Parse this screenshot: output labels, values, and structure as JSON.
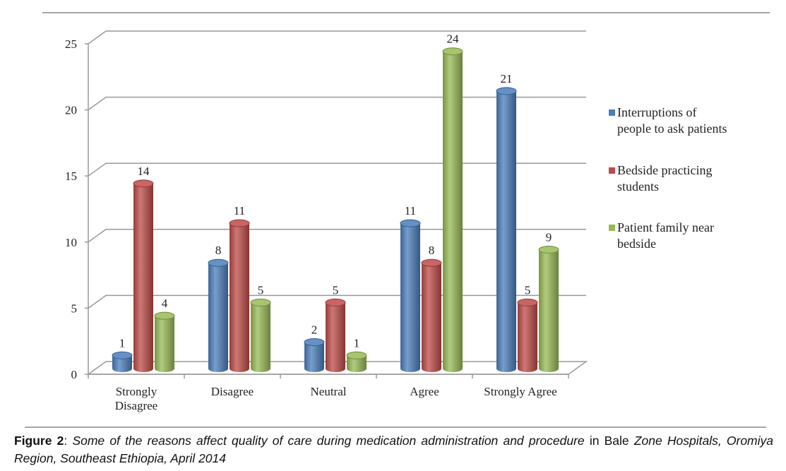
{
  "chart_data": {
    "type": "bar",
    "style": "3d-cylinder",
    "categories": [
      "Strongly Disagree",
      "Disagree",
      "Neutral",
      "Agree",
      "Strongly Agree"
    ],
    "category_lines": [
      [
        "Strongly",
        "Disagree"
      ],
      [
        "Disagree"
      ],
      [
        "Neutral"
      ],
      [
        "Agree"
      ],
      [
        "Strongly Agree"
      ]
    ],
    "series": [
      {
        "name": "Interruptions of people to ask patients",
        "name_lines": [
          "Interruptions of",
          "people to ask patients"
        ],
        "color": "#4a7ebb",
        "values": [
          1,
          8,
          2,
          11,
          21
        ]
      },
      {
        "name": "Bedside practicing students",
        "name_lines": [
          "Bedside practicing",
          "students"
        ],
        "color": "#be4b48",
        "values": [
          14,
          11,
          5,
          8,
          5
        ]
      },
      {
        "name": "Patient family near bedside",
        "name_lines": [
          "Patient family near",
          "bedside"
        ],
        "color": "#98b954",
        "values": [
          4,
          5,
          1,
          24,
          9
        ]
      }
    ],
    "ylim": [
      0,
      25
    ],
    "yticks": [
      0,
      5,
      10,
      15,
      20,
      25
    ],
    "grid": true,
    "data_labels": true,
    "legend": "right"
  },
  "caption": {
    "label": "Figure 2",
    "sep": ": ",
    "italic1": "Some of the reasons affect quality of care during medication administration and procedure",
    "normal1": " in Bale ",
    "italic2": "Zone Hospitals, Oromiya Region, Southeast Ethiopia, April 2014"
  }
}
